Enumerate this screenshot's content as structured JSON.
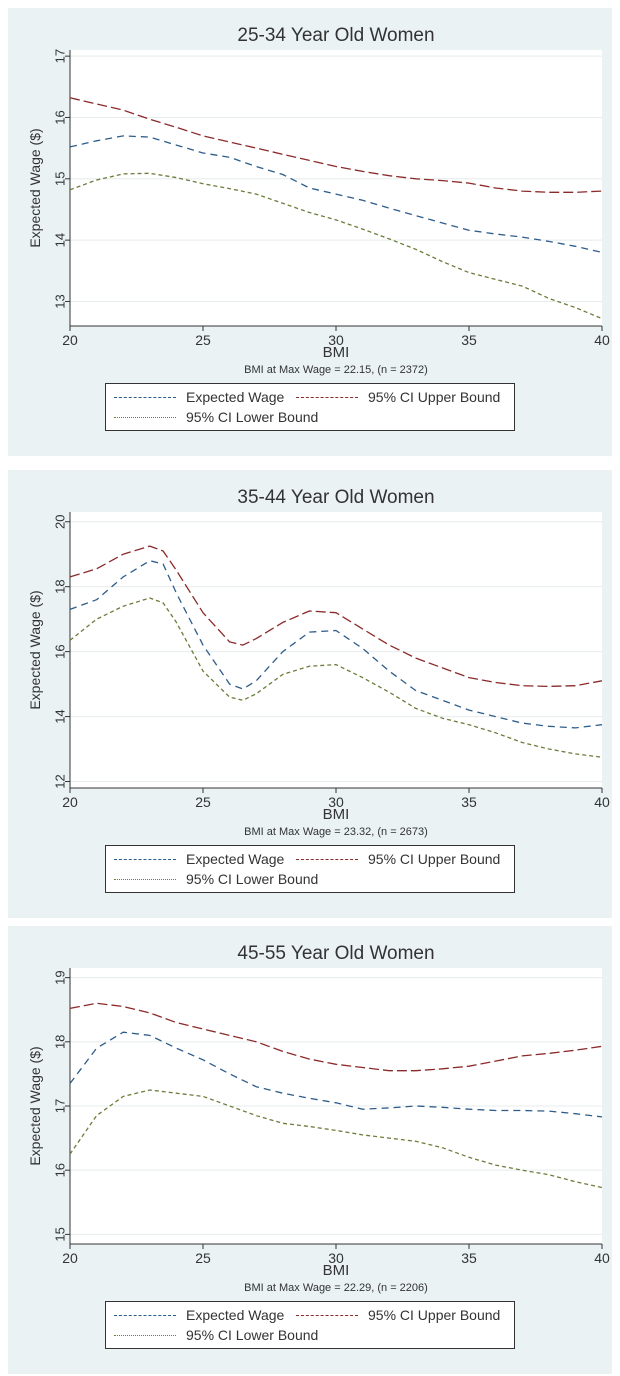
{
  "chart_data": [
    {
      "type": "line",
      "title": "25-34 Year Old Women",
      "xlabel": "BMI",
      "ylabel": "Expected Wage ($)",
      "note": "BMI at Max Wage = 22.15, (n = 2372)",
      "xlim": [
        20,
        40
      ],
      "ylim": [
        12.6,
        17.1
      ],
      "xticks": [
        20,
        25,
        30,
        35,
        40
      ],
      "yticks": [
        13,
        14,
        15,
        16,
        17
      ],
      "grid": true,
      "legend_position": "bottom",
      "series": [
        {
          "name": "Expected Wage",
          "color": "#2e5c8a",
          "dash": "7,5",
          "x": [
            20,
            21,
            22,
            23,
            24,
            25,
            26,
            27,
            28,
            29,
            30,
            31,
            32,
            33,
            34,
            35,
            36,
            37,
            38,
            39,
            40
          ],
          "y": [
            15.52,
            15.62,
            15.7,
            15.68,
            15.55,
            15.42,
            15.35,
            15.2,
            15.07,
            14.85,
            14.75,
            14.65,
            14.52,
            14.4,
            14.28,
            14.16,
            14.1,
            14.05,
            13.98,
            13.9,
            13.8
          ]
        },
        {
          "name": "95% CI Upper Bound",
          "color": "#8b2a2a",
          "dash": "10,4",
          "x": [
            20,
            21,
            22,
            23,
            24,
            25,
            26,
            27,
            28,
            29,
            30,
            31,
            32,
            33,
            34,
            35,
            36,
            37,
            38,
            39,
            40
          ],
          "y": [
            16.32,
            16.22,
            16.12,
            15.97,
            15.84,
            15.7,
            15.6,
            15.5,
            15.4,
            15.3,
            15.2,
            15.12,
            15.05,
            15.0,
            14.97,
            14.93,
            14.85,
            14.8,
            14.78,
            14.78,
            14.8
          ]
        },
        {
          "name": "95% CI Lower Bound",
          "color": "#6b7d3a",
          "dash": "4,3",
          "x": [
            20,
            21,
            22,
            23,
            24,
            25,
            26,
            27,
            28,
            29,
            30,
            31,
            32,
            33,
            34,
            35,
            36,
            37,
            38,
            39,
            40
          ],
          "y": [
            14.82,
            14.98,
            15.08,
            15.09,
            15.02,
            14.92,
            14.84,
            14.75,
            14.6,
            14.45,
            14.33,
            14.18,
            14.02,
            13.85,
            13.65,
            13.47,
            13.36,
            13.25,
            13.05,
            12.9,
            12.72
          ]
        }
      ]
    },
    {
      "type": "line",
      "title": "35-44 Year Old Women",
      "xlabel": "BMI",
      "ylabel": "Expected Wage ($)",
      "note": "BMI at Max Wage = 23.32, (n = 2673)",
      "xlim": [
        20,
        40
      ],
      "ylim": [
        11.8,
        20.3
      ],
      "xticks": [
        20,
        25,
        30,
        35,
        40
      ],
      "yticks": [
        12,
        14,
        16,
        18,
        20
      ],
      "grid": true,
      "legend_position": "bottom",
      "series": [
        {
          "name": "Expected Wage",
          "color": "#2e5c8a",
          "dash": "7,5",
          "x": [
            20,
            21,
            22,
            23,
            23.5,
            24,
            25,
            26,
            26.5,
            27,
            28,
            29,
            30,
            31,
            32,
            33,
            34,
            35,
            36,
            37,
            38,
            39,
            40
          ],
          "y": [
            17.3,
            17.6,
            18.3,
            18.8,
            18.7,
            17.8,
            16.2,
            15.0,
            14.85,
            15.1,
            16.0,
            16.6,
            16.65,
            16.1,
            15.4,
            14.8,
            14.5,
            14.2,
            14.0,
            13.8,
            13.7,
            13.65,
            13.75
          ]
        },
        {
          "name": "95% CI Upper Bound",
          "color": "#8b2a2a",
          "dash": "10,4",
          "x": [
            20,
            21,
            22,
            23,
            23.5,
            24,
            25,
            26,
            26.5,
            27,
            28,
            29,
            30,
            31,
            32,
            33,
            34,
            35,
            36,
            37,
            38,
            39,
            40
          ],
          "y": [
            18.3,
            18.55,
            19.0,
            19.25,
            19.1,
            18.5,
            17.2,
            16.3,
            16.2,
            16.4,
            16.9,
            17.25,
            17.2,
            16.7,
            16.2,
            15.8,
            15.5,
            15.2,
            15.05,
            14.95,
            14.93,
            14.95,
            15.1
          ]
        },
        {
          "name": "95% CI Lower Bound",
          "color": "#6b7d3a",
          "dash": "4,3",
          "x": [
            20,
            21,
            22,
            23,
            23.5,
            24,
            25,
            26,
            26.5,
            27,
            28,
            29,
            30,
            31,
            32,
            33,
            34,
            35,
            36,
            37,
            38,
            39,
            40
          ],
          "y": [
            16.35,
            17.0,
            17.4,
            17.65,
            17.5,
            16.9,
            15.4,
            14.6,
            14.5,
            14.7,
            15.3,
            15.55,
            15.6,
            15.2,
            14.75,
            14.25,
            13.95,
            13.75,
            13.5,
            13.2,
            13.0,
            12.85,
            12.75
          ]
        }
      ]
    },
    {
      "type": "line",
      "title": "45-55 Year Old Women",
      "xlabel": "BMI",
      "ylabel": "Expected Wage ($)",
      "note": "BMI at Max Wage = 22.29, (n = 2206)",
      "xlim": [
        20,
        40
      ],
      "ylim": [
        14.85,
        19.15
      ],
      "xticks": [
        20,
        25,
        30,
        35,
        40
      ],
      "yticks": [
        15,
        16,
        17,
        18,
        19
      ],
      "grid": true,
      "legend_position": "bottom",
      "series": [
        {
          "name": "Expected Wage",
          "color": "#2e5c8a",
          "dash": "7,5",
          "x": [
            20,
            21,
            22,
            23,
            24,
            25,
            26,
            27,
            28,
            29,
            30,
            31,
            32,
            33,
            34,
            35,
            36,
            37,
            38,
            39,
            40
          ],
          "y": [
            17.35,
            17.9,
            18.15,
            18.1,
            17.9,
            17.72,
            17.5,
            17.3,
            17.2,
            17.12,
            17.05,
            16.95,
            16.97,
            17.0,
            16.98,
            16.95,
            16.93,
            16.93,
            16.92,
            16.88,
            16.83
          ]
        },
        {
          "name": "95% CI Upper Bound",
          "color": "#8b2a2a",
          "dash": "10,4",
          "x": [
            20,
            21,
            22,
            23,
            24,
            25,
            26,
            27,
            28,
            29,
            30,
            31,
            32,
            33,
            34,
            35,
            36,
            37,
            38,
            39,
            40
          ],
          "y": [
            18.52,
            18.6,
            18.55,
            18.45,
            18.3,
            18.2,
            18.1,
            18.0,
            17.85,
            17.73,
            17.65,
            17.6,
            17.55,
            17.55,
            17.58,
            17.62,
            17.7,
            17.78,
            17.82,
            17.87,
            17.93
          ]
        },
        {
          "name": "95% CI Lower Bound",
          "color": "#6b7d3a",
          "dash": "4,3",
          "x": [
            20,
            21,
            22,
            23,
            24,
            25,
            26,
            27,
            28,
            29,
            30,
            31,
            32,
            33,
            34,
            35,
            36,
            37,
            38,
            39,
            40
          ],
          "y": [
            16.25,
            16.85,
            17.15,
            17.25,
            17.2,
            17.15,
            17.0,
            16.85,
            16.73,
            16.68,
            16.62,
            16.55,
            16.5,
            16.45,
            16.35,
            16.2,
            16.08,
            16.0,
            15.93,
            15.82,
            15.73
          ]
        }
      ]
    }
  ]
}
